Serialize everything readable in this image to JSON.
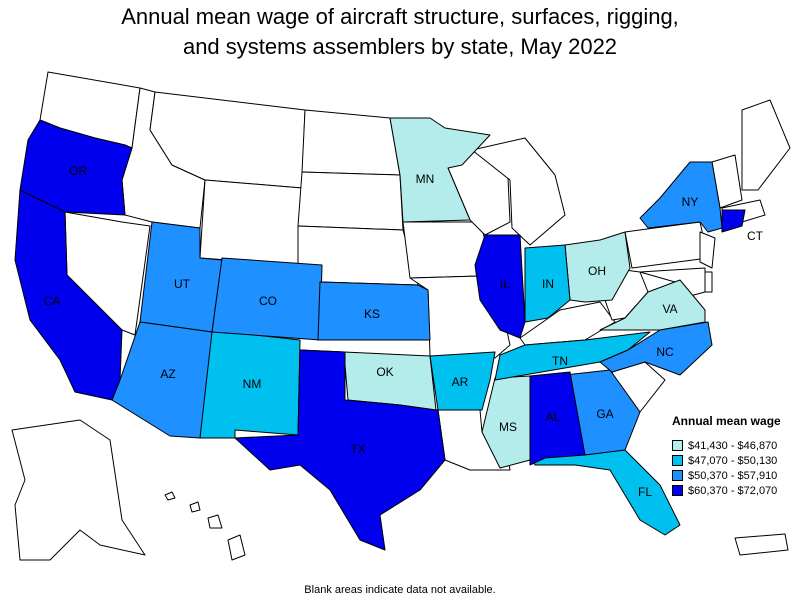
{
  "title_line1": "Annual mean wage of aircraft structure, surfaces, rigging,",
  "title_line2": "and systems assemblers by state, May 2022",
  "legend": {
    "title": "Annual mean wage",
    "items": [
      {
        "label": "$41,430 - $46,870",
        "color": "#b4ecec"
      },
      {
        "label": "$47,070 - $50,130",
        "color": "#00c0f0"
      },
      {
        "label": "$50,370 - $57,910",
        "color": "#1e90ff"
      },
      {
        "label": "$60,370 - $72,070",
        "color": "#0000ee"
      }
    ]
  },
  "footnote": "Blank areas indicate data not available.",
  "colors": {
    "blank": "#ffffff",
    "tier1": "#b4ecec",
    "tier2": "#00c0f0",
    "tier3": "#1e90ff",
    "tier4": "#0000ee"
  },
  "state_labels": {
    "OR": "OR",
    "CA": "CA",
    "UT": "UT",
    "CO": "CO",
    "AZ": "AZ",
    "NM": "NM",
    "KS": "KS",
    "OK": "OK",
    "TX": "TX",
    "MN": "MN",
    "IL": "IL",
    "IN": "IN",
    "OH": "OH",
    "AR": "AR",
    "TN": "TN",
    "MS": "MS",
    "AL": "AL",
    "GA": "GA",
    "FL": "FL",
    "NC": "NC",
    "VA": "VA",
    "NY": "NY",
    "CT": "CT"
  }
}
